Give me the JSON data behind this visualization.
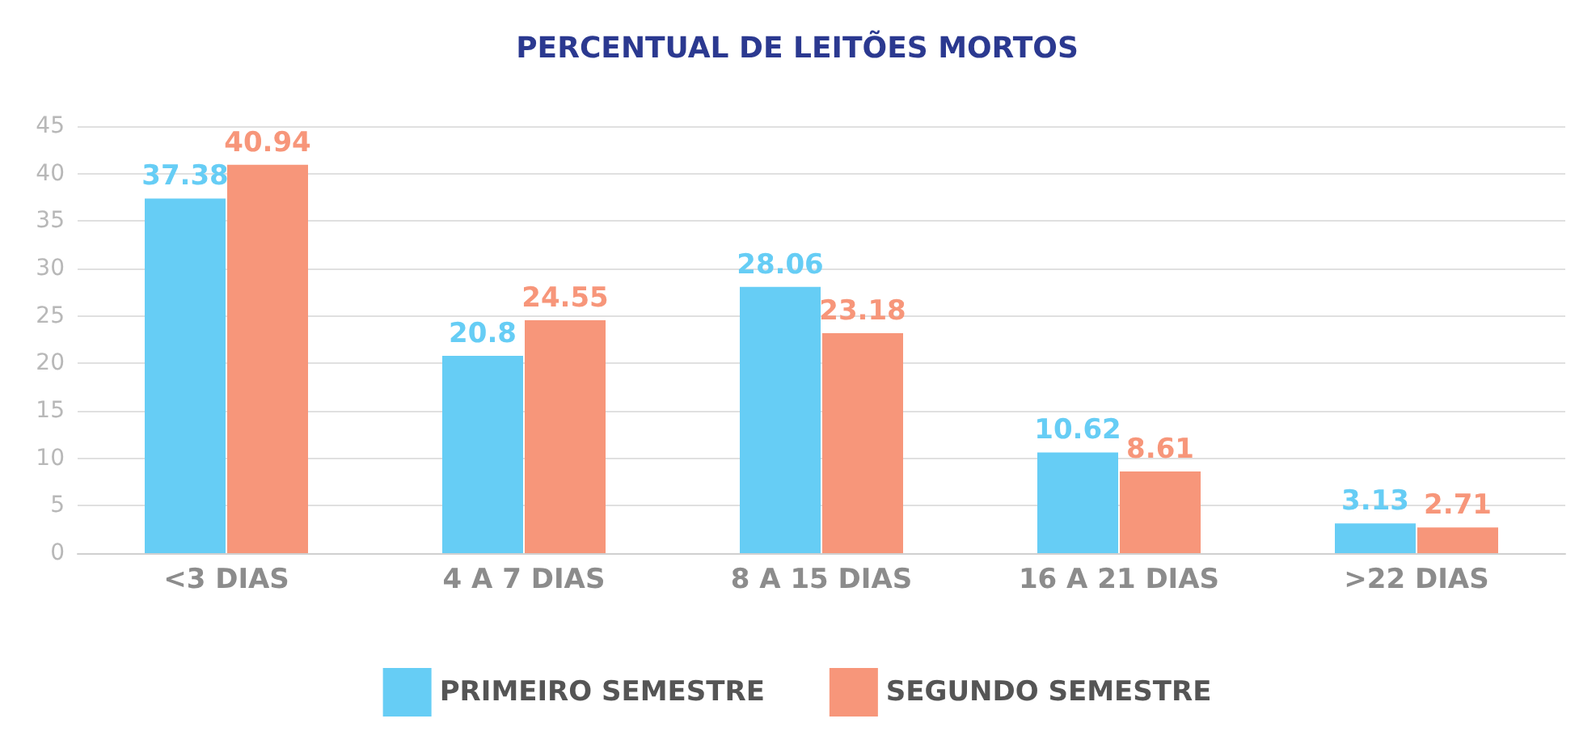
{
  "chart_data": {
    "type": "bar",
    "title": "PERCENTUAL DE LEITÕES MORTOS",
    "categories": [
      "<3 DIAS",
      "4 A 7 DIAS",
      "8 A 15 DIAS",
      "16 A 21 DIAS",
      ">22 DIAS"
    ],
    "series": [
      {
        "name": "PRIMEIRO SEMESTRE",
        "color": "#66cdf5",
        "values": [
          37.38,
          20.8,
          28.06,
          10.62,
          3.13
        ]
      },
      {
        "name": "SEGUNDO SEMESTRE",
        "color": "#f7967a",
        "values": [
          40.94,
          24.55,
          23.18,
          8.61,
          2.71
        ]
      }
    ],
    "ylim": [
      0,
      45
    ],
    "yticks": [
      0,
      5,
      10,
      15,
      20,
      25,
      30,
      35,
      40,
      45
    ],
    "grid": "y",
    "legend": "bottom",
    "data_labels": true
  }
}
